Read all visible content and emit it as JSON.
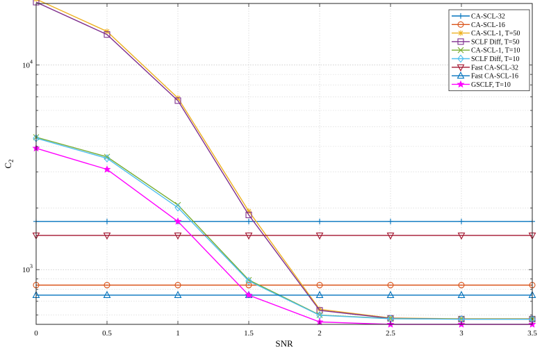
{
  "chart_data": {
    "type": "line",
    "title": "",
    "xlabel": "SNR",
    "ylabel": "C",
    "ylabel_subscript": "2",
    "x": [
      0,
      0.5,
      1,
      1.5,
      2,
      2.5,
      3,
      3.5
    ],
    "x_ticks": [
      "0",
      "0.5",
      "1",
      "1.5",
      "2",
      "2.5",
      "3",
      "3.5"
    ],
    "xlim": [
      0,
      3.5
    ],
    "y_scale": "log",
    "ylim": [
      540,
      20000
    ],
    "y_tick_labels": [
      {
        "value": 1000,
        "base": "10",
        "exp": "3"
      },
      {
        "value": 10000,
        "base": "10",
        "exp": "4"
      }
    ],
    "grid": true,
    "legend_position": "top-right",
    "series": [
      {
        "name": "CA-SCL-32",
        "color": "#0072BD",
        "marker": "plus",
        "values": [
          1720,
          1720,
          1720,
          1720,
          1720,
          1720,
          1720,
          1720
        ]
      },
      {
        "name": "CA-SCL-16",
        "color": "#D95319",
        "marker": "circle",
        "values": [
          840,
          840,
          840,
          840,
          840,
          840,
          840,
          840
        ]
      },
      {
        "name": "CA-SCL-1, T=50",
        "color": "#EDB120",
        "marker": "asterisk",
        "values": [
          21000,
          14600,
          6900,
          1930,
          640,
          580,
          575,
          575
        ]
      },
      {
        "name": "SCLF Diff, T=50",
        "color": "#7E2F8E",
        "marker": "square",
        "values": [
          20300,
          14100,
          6700,
          1850,
          632,
          578,
          573,
          573
        ]
      },
      {
        "name": "CA-SCL-1, T=10",
        "color": "#77AC30",
        "marker": "x",
        "values": [
          4440,
          3560,
          2070,
          890,
          600,
          576,
          573,
          573
        ]
      },
      {
        "name": "SCLF Diff, T=10",
        "color": "#4DBEEE",
        "marker": "diamond",
        "values": [
          4390,
          3500,
          2010,
          880,
          598,
          575,
          572,
          572
        ]
      },
      {
        "name": "Fast CA-SCL-32",
        "color": "#A2142F",
        "marker": "triangle-down",
        "values": [
          1470,
          1470,
          1470,
          1470,
          1470,
          1470,
          1470,
          1470
        ]
      },
      {
        "name": "Fast CA-SCL-16",
        "color": "#0072BD",
        "marker": "triangle-up",
        "values": [
          750,
          750,
          750,
          750,
          750,
          750,
          750,
          750
        ]
      },
      {
        "name": "GSCLF, T=10",
        "color": "#FF00FF",
        "marker": "star",
        "values": [
          3920,
          3090,
          1720,
          750,
          555,
          540,
          540,
          540
        ]
      }
    ]
  }
}
